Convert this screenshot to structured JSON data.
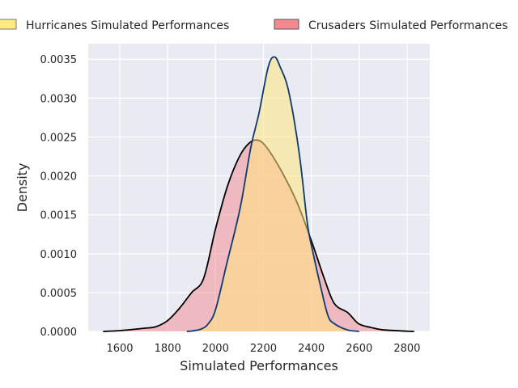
{
  "chart_data": {
    "type": "area",
    "title": "",
    "xlabel": "Simulated Performances",
    "ylabel": "Density",
    "xlim": [
      1468,
      2895
    ],
    "ylim": [
      0,
      0.0037
    ],
    "xticks": [
      1600,
      1800,
      2000,
      2200,
      2400,
      2600,
      2800
    ],
    "yticks": [
      0,
      0.0005,
      0.001,
      0.0015,
      0.002,
      0.0025,
      0.003,
      0.0035
    ],
    "ytick_labels": [
      "0.0000",
      "0.0005",
      "0.0010",
      "0.0015",
      "0.0020",
      "0.0025",
      "0.0030",
      "0.0035"
    ],
    "grid": true,
    "legend_position": "top-center, outside",
    "series": [
      {
        "name": "Crusaders Simulated Performances",
        "fill": "#f4878f",
        "line": "#000000",
        "x": [
          1530,
          1600,
          1700,
          1750,
          1800,
          1850,
          1900,
          1950,
          2000,
          2050,
          2100,
          2140,
          2175,
          2210,
          2272,
          2340,
          2401,
          2452,
          2496,
          2553,
          2597,
          2650,
          2700,
          2800,
          2830
        ],
        "y": [
          0,
          1e-05,
          4e-05,
          6e-05,
          0.00014,
          0.0003,
          0.0005,
          0.00068,
          0.00132,
          0.00187,
          0.00225,
          0.00242,
          0.00246,
          0.00238,
          0.00208,
          0.00166,
          0.00116,
          0.0007,
          0.00036,
          0.00024,
          0.0001,
          5e-05,
          2e-05,
          3e-06,
          0
        ]
      },
      {
        "name": "Hurricanes Simulated Performances",
        "fill": "#ffe680",
        "line": "#0d3b6e",
        "x": [
          1880,
          1900,
          1940,
          1970,
          2000,
          2046,
          2103,
          2147,
          2181,
          2220,
          2246,
          2270,
          2306,
          2350,
          2384,
          2408,
          2441,
          2470,
          2496,
          2550,
          2600
        ],
        "y": [
          0,
          5e-06,
          3e-05,
          0.0001,
          0.00028,
          0.00086,
          0.00159,
          0.00236,
          0.0028,
          0.0034,
          0.00353,
          0.0034,
          0.00308,
          0.00228,
          0.00138,
          0.001,
          0.00055,
          0.0002,
          0.0001,
          2e-05,
          0
        ]
      }
    ]
  }
}
